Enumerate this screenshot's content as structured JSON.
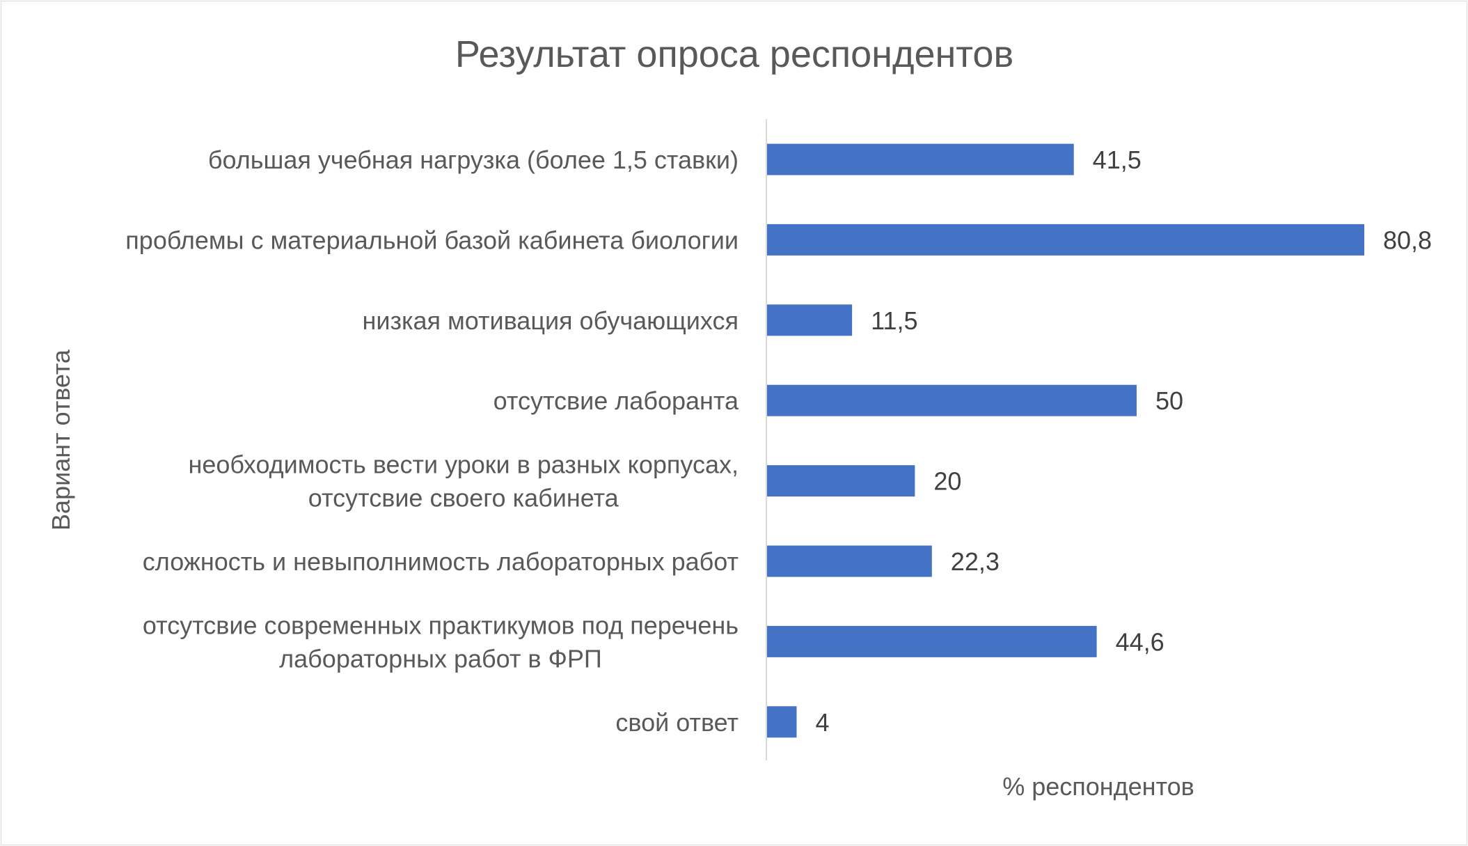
{
  "chart_data": {
    "type": "bar",
    "orientation": "horizontal",
    "title": "Результат опроса респондентов",
    "xlabel": "% респондентов",
    "ylabel": "Вариант ответа",
    "categories": [
      [
        "большая учебная нагрузка (более 1,5 ставки)"
      ],
      [
        "проблемы с материальной базой кабинета биологии"
      ],
      [
        "низкая мотивация обучающихся"
      ],
      [
        "отсутсвие лаборанта"
      ],
      [
        "необходимость вести уроки в разных корпусах,",
        "отсутсвие своего кабинета"
      ],
      [
        "сложность и невыполнимость лабораторных работ"
      ],
      [
        "отсутсвие современных практикумов под перечень",
        "лабораторных работ в ФРП"
      ],
      [
        "свой ответ"
      ]
    ],
    "values": [
      41.5,
      80.8,
      11.5,
      50,
      20,
      22.3,
      44.6,
      4
    ],
    "value_labels": [
      "41,5",
      "80,8",
      "11,5",
      "50",
      "20",
      "22,3",
      "44,6",
      "4"
    ],
    "xlim": [
      0,
      85
    ],
    "grid": false,
    "legend": "none",
    "bar_color": "#4472c4"
  }
}
